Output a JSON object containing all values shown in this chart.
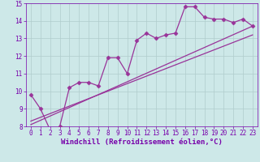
{
  "bg_color": "#cde8e8",
  "grid_color": "#b0cccc",
  "line_color": "#993399",
  "marker_color": "#993399",
  "xlabel": "Windchill (Refroidissement éolien,°C)",
  "xlabel_color": "#7700aa",
  "tick_color": "#7700aa",
  "xlim": [
    -0.5,
    23.5
  ],
  "ylim": [
    8,
    15
  ],
  "yticks": [
    8,
    9,
    10,
    11,
    12,
    13,
    14,
    15
  ],
  "xticks": [
    0,
    1,
    2,
    3,
    4,
    5,
    6,
    7,
    8,
    9,
    10,
    11,
    12,
    13,
    14,
    15,
    16,
    17,
    18,
    19,
    20,
    21,
    22,
    23
  ],
  "series1_x": [
    0,
    1,
    2,
    3,
    4,
    5,
    6,
    7,
    8,
    9,
    10,
    11,
    12,
    13,
    14,
    15,
    16,
    17,
    18,
    19,
    20,
    21,
    22,
    23
  ],
  "series1_y": [
    9.8,
    9.0,
    7.8,
    8.0,
    10.2,
    10.5,
    10.5,
    10.3,
    11.9,
    11.9,
    11.0,
    12.9,
    13.3,
    13.0,
    13.2,
    13.3,
    14.8,
    14.8,
    14.2,
    14.1,
    14.1,
    13.9,
    14.1,
    13.7
  ],
  "line2_x": [
    0,
    23
  ],
  "line2_y": [
    8.3,
    13.2
  ],
  "line3_x": [
    0,
    23
  ],
  "line3_y": [
    8.1,
    13.7
  ],
  "marker": "D",
  "markersize": 2.5,
  "linewidth": 0.9,
  "xlabel_fontsize": 6.5,
  "tick_fontsize": 5.5
}
